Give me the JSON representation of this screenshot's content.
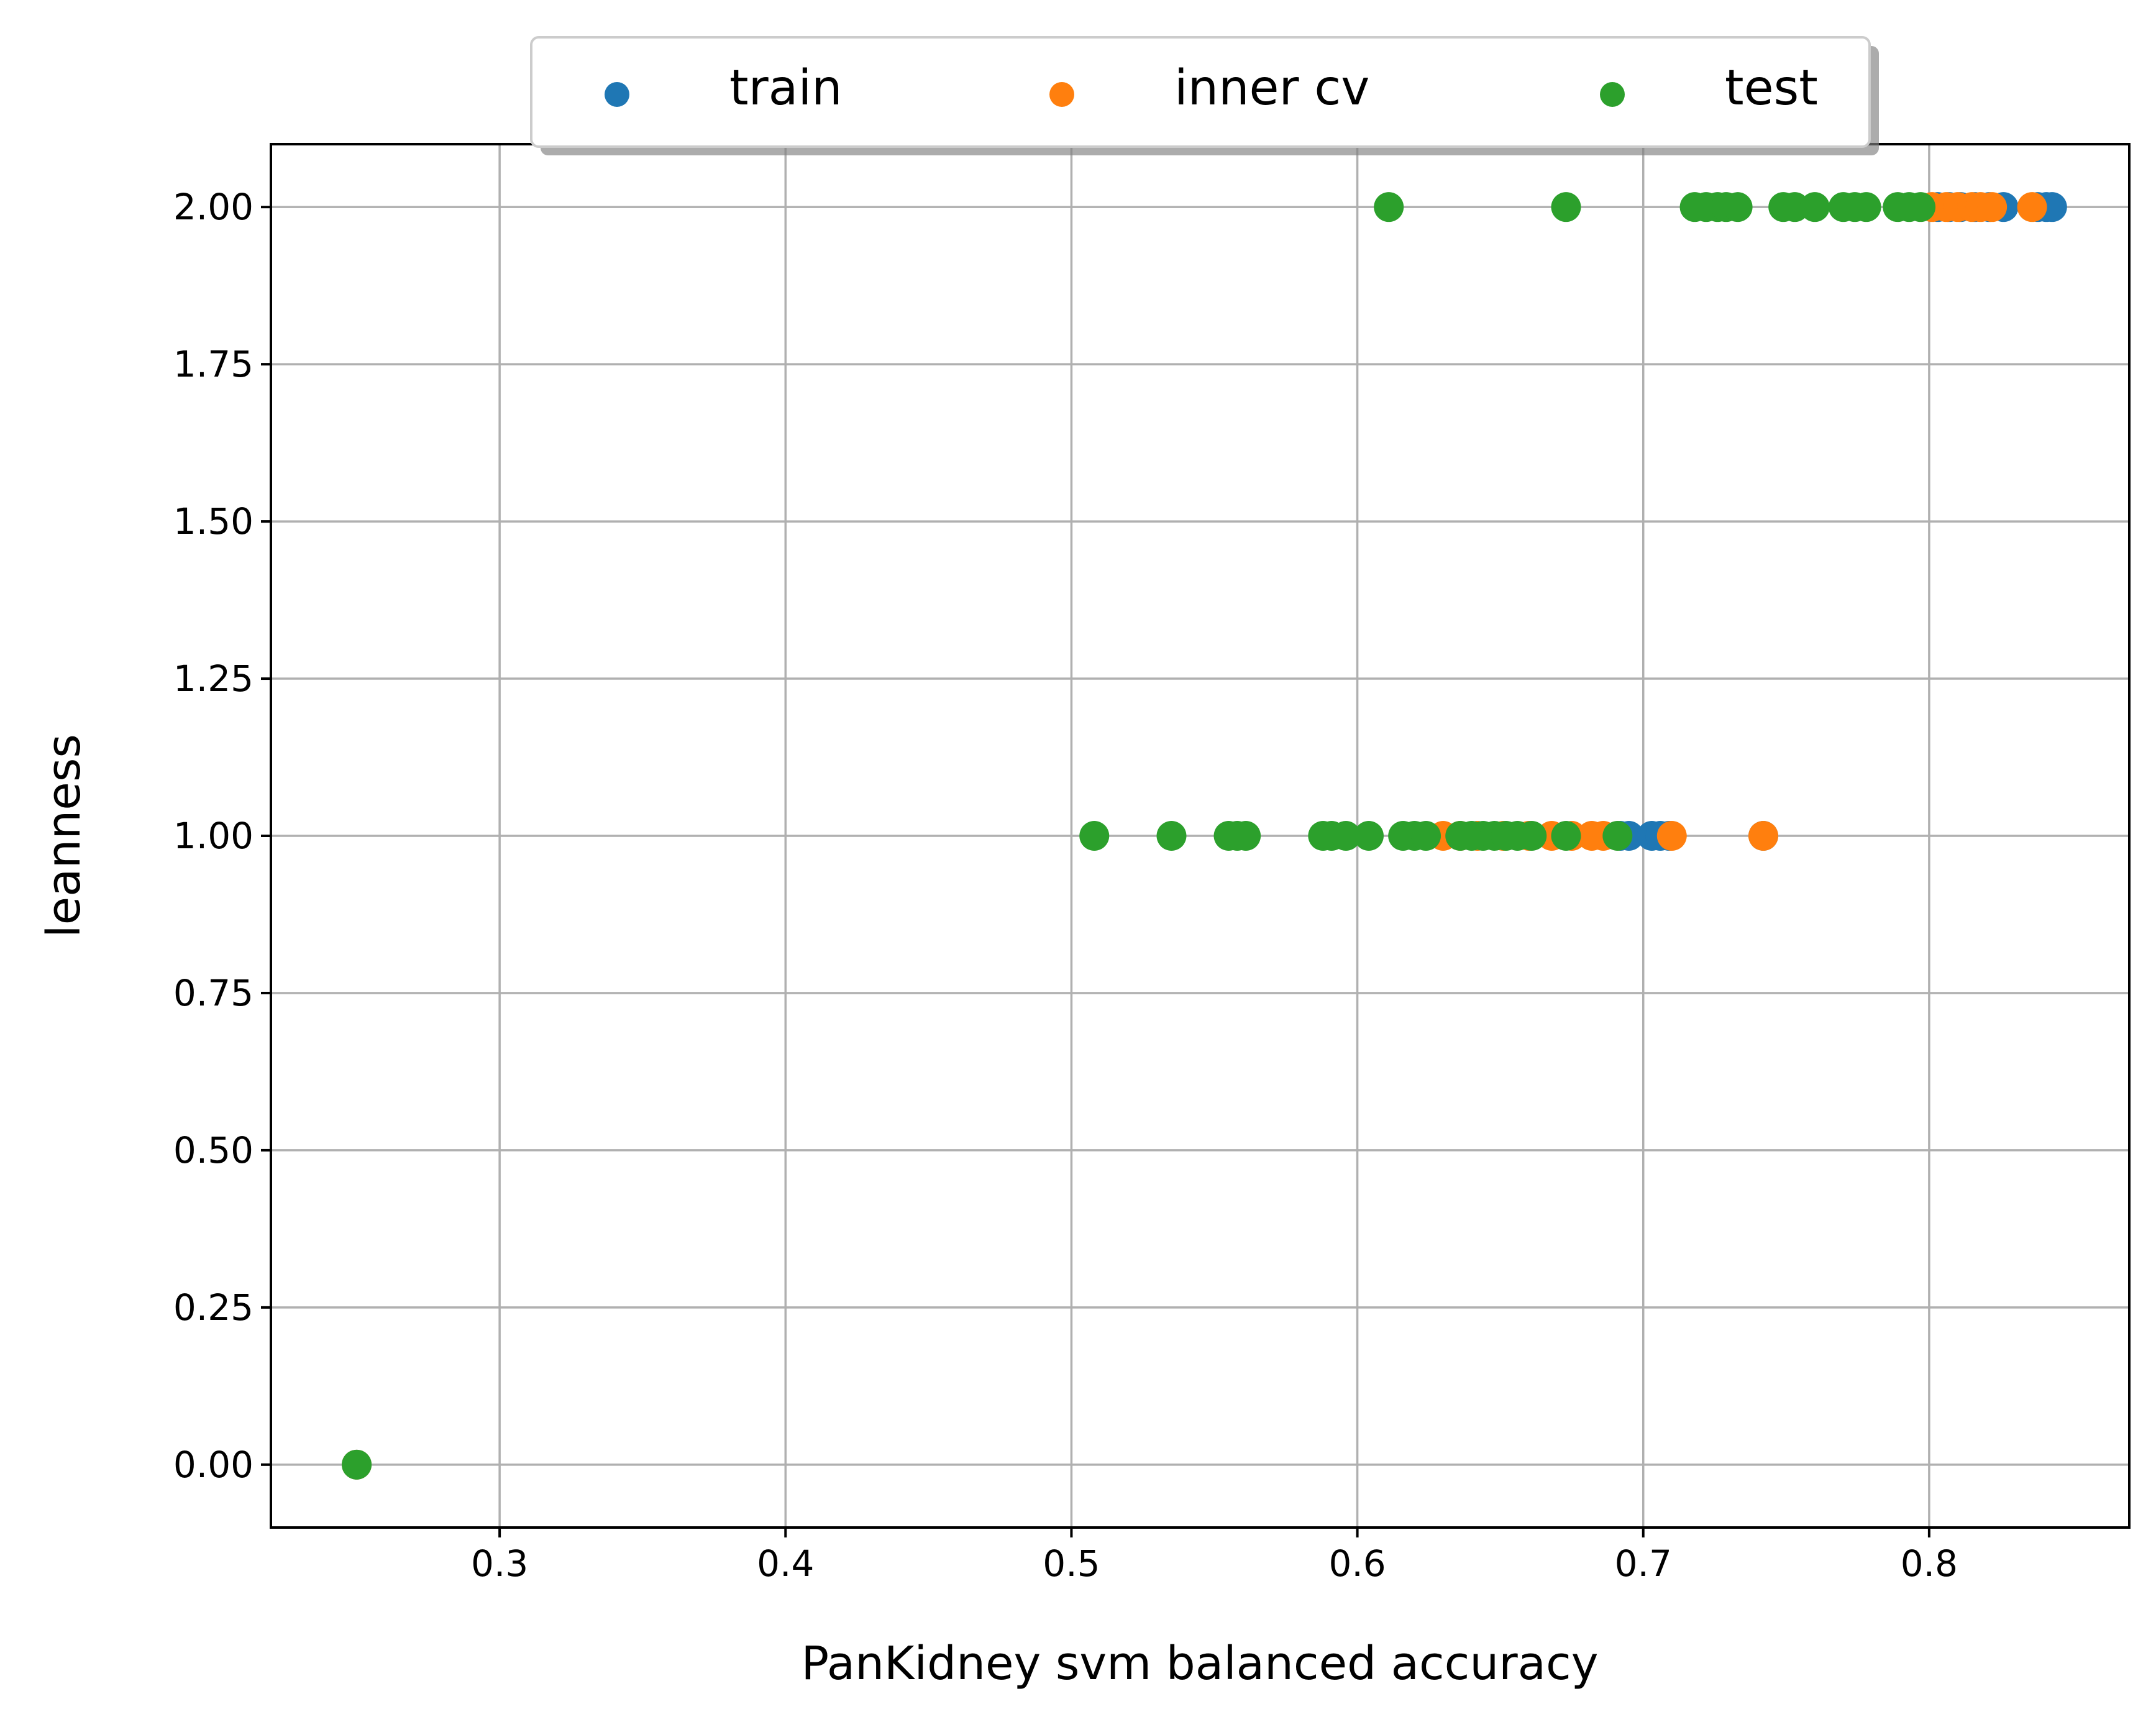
{
  "chart_data": {
    "type": "scatter",
    "title": "",
    "xlabel": "PanKidney svm balanced accuracy",
    "ylabel": "leanness",
    "xlim": [
      0.22,
      0.87
    ],
    "ylim": [
      -0.1,
      2.1
    ],
    "x_ticks": [
      0.3,
      0.4,
      0.5,
      0.6,
      0.7,
      0.8
    ],
    "x_tick_labels": [
      "0.3",
      "0.4",
      "0.5",
      "0.6",
      "0.7",
      "0.8"
    ],
    "y_ticks": [
      0,
      0.25,
      0.5,
      0.75,
      1,
      1.25,
      1.5,
      1.75,
      2
    ],
    "y_tick_labels": [
      "0.00",
      "0.25",
      "0.50",
      "0.75",
      "1.00",
      "1.25",
      "1.50",
      "1.75",
      "2.00"
    ],
    "grid": true,
    "legend": {
      "placement": "top-center-outside",
      "shadow": true,
      "columns": 3
    },
    "series": [
      {
        "name": "train",
        "color": "#1f77b4",
        "points": [
          {
            "x": 0.25,
            "y": 0
          },
          {
            "x": 0.692,
            "y": 1
          },
          {
            "x": 0.695,
            "y": 1
          },
          {
            "x": 0.703,
            "y": 1
          },
          {
            "x": 0.706,
            "y": 1
          },
          {
            "x": 0.709,
            "y": 1
          },
          {
            "x": 0.742,
            "y": 1
          },
          {
            "x": 0.803,
            "y": 2
          },
          {
            "x": 0.807,
            "y": 2
          },
          {
            "x": 0.811,
            "y": 2
          },
          {
            "x": 0.816,
            "y": 2
          },
          {
            "x": 0.821,
            "y": 2
          },
          {
            "x": 0.826,
            "y": 2
          },
          {
            "x": 0.838,
            "y": 2
          },
          {
            "x": 0.841,
            "y": 2
          },
          {
            "x": 0.843,
            "y": 2
          }
        ]
      },
      {
        "name": "inner cv",
        "color": "#ff7f0e",
        "points": [
          {
            "x": 0.25,
            "y": 0
          },
          {
            "x": 0.63,
            "y": 1
          },
          {
            "x": 0.636,
            "y": 1
          },
          {
            "x": 0.642,
            "y": 1
          },
          {
            "x": 0.651,
            "y": 1
          },
          {
            "x": 0.66,
            "y": 1
          },
          {
            "x": 0.668,
            "y": 1
          },
          {
            "x": 0.675,
            "y": 1
          },
          {
            "x": 0.682,
            "y": 1
          },
          {
            "x": 0.686,
            "y": 1
          },
          {
            "x": 0.71,
            "y": 1
          },
          {
            "x": 0.742,
            "y": 1
          },
          {
            "x": 0.801,
            "y": 2
          },
          {
            "x": 0.806,
            "y": 2
          },
          {
            "x": 0.81,
            "y": 2
          },
          {
            "x": 0.815,
            "y": 2
          },
          {
            "x": 0.818,
            "y": 2
          },
          {
            "x": 0.822,
            "y": 2
          },
          {
            "x": 0.836,
            "y": 2
          }
        ]
      },
      {
        "name": "test",
        "color": "#2ca02c",
        "points": [
          {
            "x": 0.25,
            "y": 0
          },
          {
            "x": 0.508,
            "y": 1
          },
          {
            "x": 0.535,
            "y": 1
          },
          {
            "x": 0.555,
            "y": 1
          },
          {
            "x": 0.558,
            "y": 1
          },
          {
            "x": 0.561,
            "y": 1
          },
          {
            "x": 0.588,
            "y": 1
          },
          {
            "x": 0.591,
            "y": 1
          },
          {
            "x": 0.596,
            "y": 1
          },
          {
            "x": 0.604,
            "y": 1
          },
          {
            "x": 0.616,
            "y": 1
          },
          {
            "x": 0.62,
            "y": 1
          },
          {
            "x": 0.624,
            "y": 1
          },
          {
            "x": 0.636,
            "y": 1
          },
          {
            "x": 0.64,
            "y": 1
          },
          {
            "x": 0.644,
            "y": 1
          },
          {
            "x": 0.648,
            "y": 1
          },
          {
            "x": 0.652,
            "y": 1
          },
          {
            "x": 0.656,
            "y": 1
          },
          {
            "x": 0.661,
            "y": 1
          },
          {
            "x": 0.673,
            "y": 1
          },
          {
            "x": 0.691,
            "y": 1
          },
          {
            "x": 0.611,
            "y": 2
          },
          {
            "x": 0.673,
            "y": 2
          },
          {
            "x": 0.718,
            "y": 2
          },
          {
            "x": 0.722,
            "y": 2
          },
          {
            "x": 0.726,
            "y": 2
          },
          {
            "x": 0.729,
            "y": 2
          },
          {
            "x": 0.733,
            "y": 2
          },
          {
            "x": 0.749,
            "y": 2
          },
          {
            "x": 0.753,
            "y": 2
          },
          {
            "x": 0.76,
            "y": 2
          },
          {
            "x": 0.77,
            "y": 2
          },
          {
            "x": 0.774,
            "y": 2
          },
          {
            "x": 0.778,
            "y": 2
          },
          {
            "x": 0.789,
            "y": 2
          },
          {
            "x": 0.793,
            "y": 2
          },
          {
            "x": 0.797,
            "y": 2
          }
        ]
      }
    ]
  }
}
